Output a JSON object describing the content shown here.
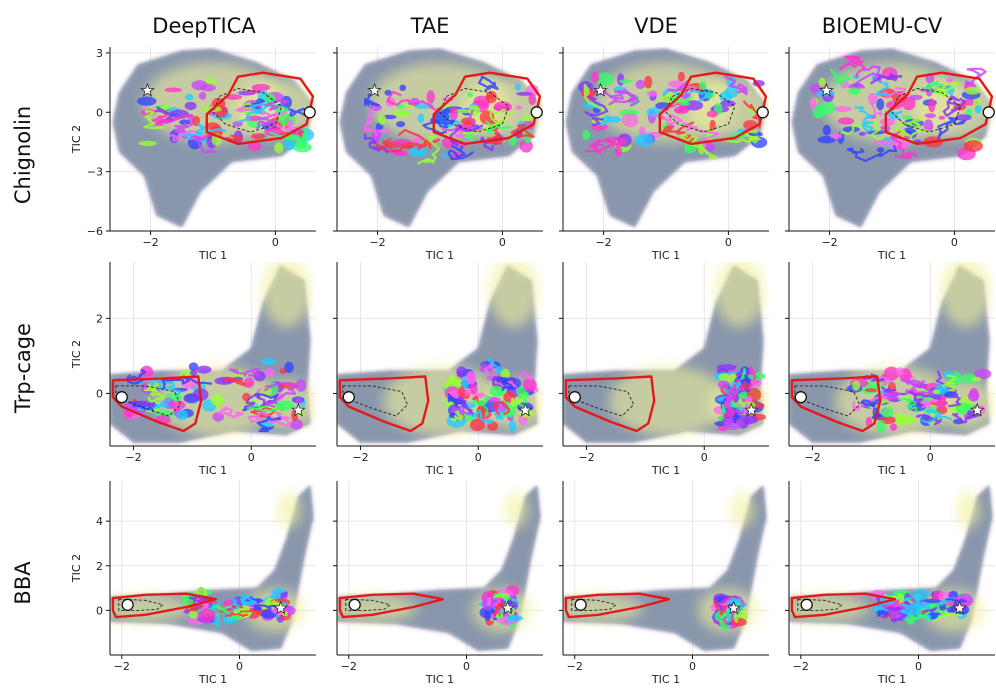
{
  "figure": {
    "columns": [
      "DeepTICA",
      "TAE",
      "VDE",
      "BIOEMU-CV"
    ],
    "rows": [
      "Chignolin",
      "Trp-cage",
      "BBA"
    ]
  },
  "chart_data": [
    {
      "type": "scatter",
      "system": "Chignolin",
      "xlabel": "TIC 1",
      "ylabel": "TIC 2",
      "xlim": [
        -2.65,
        0.65
      ],
      "ylim": [
        -6,
        3.3
      ],
      "xticks": [
        -2,
        0
      ],
      "yticks": [
        -6,
        -3,
        0,
        3
      ],
      "start_marker": {
        "x": 0.55,
        "y": 0.0
      },
      "target_star": {
        "x": -2.05,
        "y": 1.1
      },
      "density": {
        "x_range": [
          -2.6,
          0.6
        ],
        "y_range": [
          -5.9,
          3.2
        ]
      },
      "panels": [
        {
          "method": "DeepTICA",
          "explored_x": [
            -2.1,
            0.5
          ],
          "explored_y": [
            -2.0,
            1.7
          ]
        },
        {
          "method": "TAE",
          "explored_x": [
            -2.2,
            0.5
          ],
          "explored_y": [
            -2.8,
            1.8
          ]
        },
        {
          "method": "VDE",
          "explored_x": [
            -2.3,
            0.5
          ],
          "explored_y": [
            -2.4,
            2.3
          ]
        },
        {
          "method": "BIOEMU-CV",
          "explored_x": [
            -2.3,
            0.5
          ],
          "explored_y": [
            -2.6,
            2.8
          ]
        }
      ]
    },
    {
      "type": "scatter",
      "system": "Trp-cage",
      "xlabel": "TIC 1",
      "ylabel": "TIC 2",
      "xlim": [
        -2.4,
        1.1
      ],
      "ylim": [
        -1.4,
        3.5
      ],
      "xticks": [
        -2,
        0
      ],
      "yticks": [
        0,
        2
      ],
      "start_marker": {
        "x": -2.2,
        "y": -0.1
      },
      "target_star": {
        "x": 0.8,
        "y": -0.45
      },
      "density": {
        "x_range": [
          -2.4,
          1.0
        ],
        "y_range": [
          -1.3,
          3.4
        ]
      },
      "panels": [
        {
          "method": "DeepTICA",
          "explored_x": [
            -2.1,
            0.9
          ],
          "explored_y": [
            -1.0,
            0.9
          ]
        },
        {
          "method": "TAE",
          "explored_x": [
            -0.5,
            0.9
          ],
          "explored_y": [
            -1.0,
            0.9
          ]
        },
        {
          "method": "VDE",
          "explored_x": [
            0.3,
            0.9
          ],
          "explored_y": [
            -1.0,
            0.8
          ]
        },
        {
          "method": "BIOEMU-CV",
          "explored_x": [
            -1.3,
            0.9
          ],
          "explored_y": [
            -1.0,
            0.8
          ]
        }
      ]
    },
    {
      "type": "scatter",
      "system": "BBA",
      "xlabel": "TIC 1",
      "ylabel": "TIC 2",
      "xlim": [
        -2.2,
        1.3
      ],
      "ylim": [
        -2.0,
        5.8
      ],
      "xticks": [
        -2,
        0
      ],
      "yticks": [
        0,
        2,
        4
      ],
      "start_marker": {
        "x": -1.9,
        "y": 0.25
      },
      "target_star": {
        "x": 0.7,
        "y": 0.1
      },
      "density": {
        "x_range": [
          -2.2,
          1.2
        ],
        "y_range": [
          -1.8,
          5.6
        ]
      },
      "panels": [
        {
          "method": "DeepTICA",
          "explored_x": [
            -0.9,
            0.8
          ],
          "explored_y": [
            -0.6,
            0.9
          ]
        },
        {
          "method": "TAE",
          "explored_x": [
            0.35,
            0.8
          ],
          "explored_y": [
            -0.6,
            0.9
          ]
        },
        {
          "method": "VDE",
          "explored_x": [
            0.45,
            0.8
          ],
          "explored_y": [
            -0.7,
            0.7
          ]
        },
        {
          "method": "BIOEMU-CV",
          "explored_x": [
            -0.7,
            0.8
          ],
          "explored_y": [
            -0.5,
            0.9
          ]
        }
      ]
    }
  ],
  "colors": {
    "density_low": "#7a5b96",
    "density_mid": "#86b3b2",
    "density_high": "#f0f09a",
    "region_outline": "#e31a1c",
    "traj_palette": [
      "#ff33cc",
      "#cc44ff",
      "#3344ff",
      "#22ccff",
      "#33ff66",
      "#99ff33",
      "#ff3344",
      "#8833ff",
      "#ff66ee"
    ]
  }
}
